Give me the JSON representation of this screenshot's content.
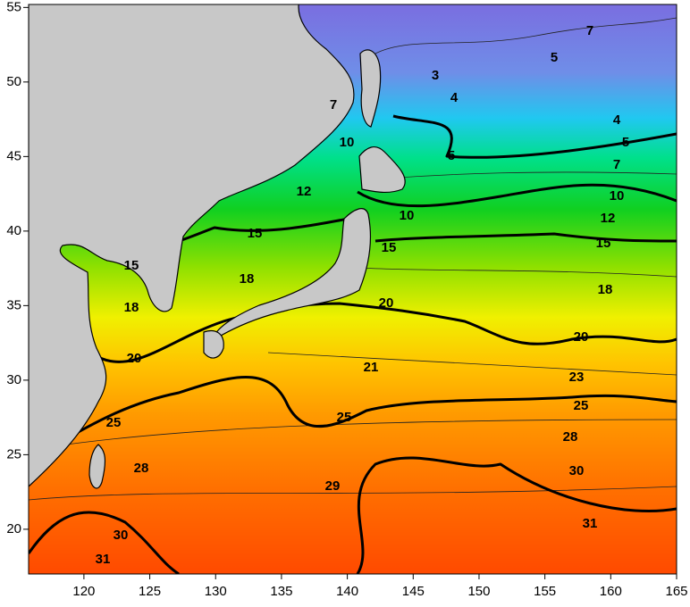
{
  "map": {
    "x_axis": {
      "lim": [
        115.8,
        165
      ],
      "ticks": [
        120,
        125,
        130,
        135,
        140,
        145,
        150,
        155,
        160,
        165
      ]
    },
    "y_axis": {
      "lim": [
        17,
        55.2
      ],
      "ticks": [
        20,
        25,
        30,
        35,
        40,
        45,
        50,
        55
      ]
    },
    "contour_labels": [
      3,
      4,
      4,
      5,
      5,
      5,
      7,
      7,
      7,
      10,
      10,
      10,
      12,
      12,
      15,
      15,
      15,
      15,
      18,
      18,
      18,
      20,
      20,
      20,
      21,
      23,
      25,
      25,
      25,
      28,
      28,
      29,
      30,
      30,
      31,
      31
    ]
  }
}
